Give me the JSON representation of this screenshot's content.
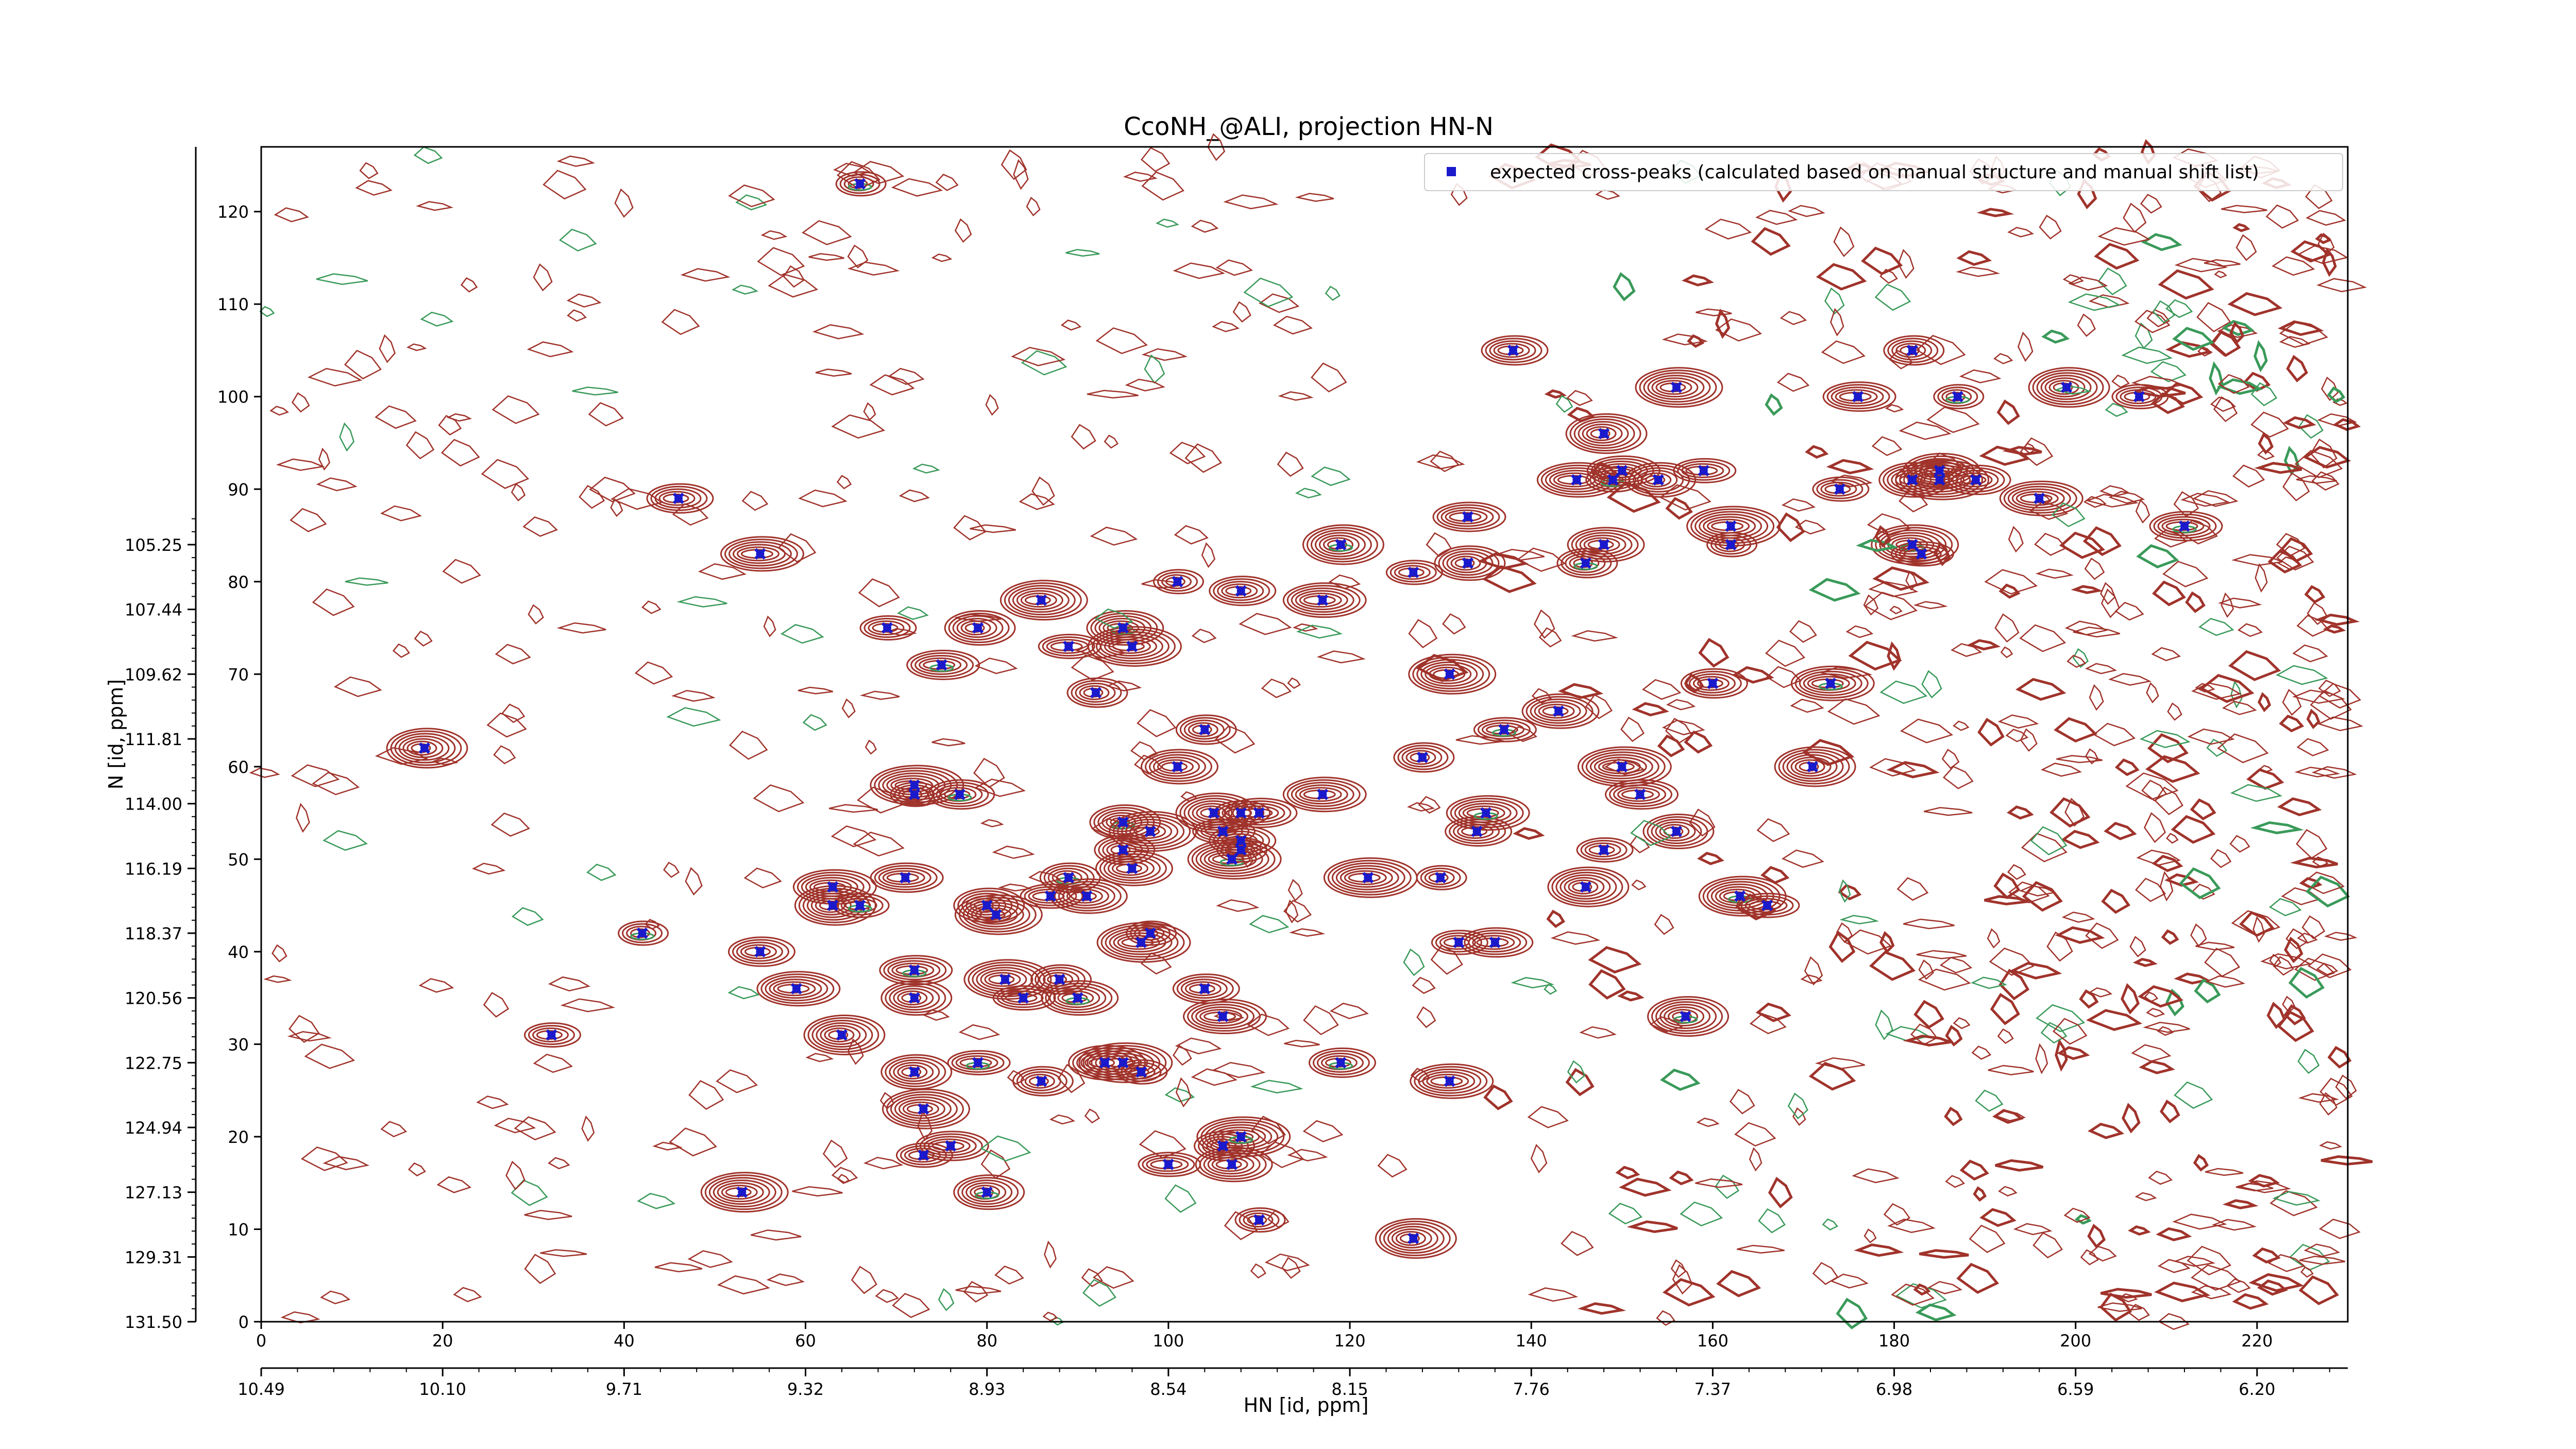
{
  "chart_data": {
    "type": "scatter",
    "title": "CcoNH_@ALI, projection HN-N",
    "xlabel": "HN [id, ppm]",
    "ylabel": "N [id, ppm]",
    "xlim": [
      0,
      230
    ],
    "ylim": [
      0,
      127
    ],
    "x_index_ticks": [
      "0",
      "20",
      "40",
      "60",
      "80",
      "100",
      "120",
      "140",
      "160",
      "180",
      "200",
      "220"
    ],
    "y_index_ticks": [
      "0",
      "10",
      "20",
      "30",
      "40",
      "50",
      "60",
      "70",
      "80",
      "90",
      "100",
      "110",
      "120"
    ],
    "x_ppm_ticks": [
      "10.49",
      "10.10",
      "9.71",
      "9.32",
      "8.93",
      "8.54",
      "8.15",
      "7.76",
      "7.37",
      "6.98",
      "6.59",
      "6.20"
    ],
    "y_ppm_ticks": [
      "131.50",
      "129.31",
      "127.13",
      "124.94",
      "122.75",
      "120.56",
      "118.37",
      "116.19",
      "114.00",
      "111.81",
      "109.62",
      "107.44",
      "105.25"
    ],
    "legend": {
      "placement": "top-right",
      "label": "expected cross-peaks (calculated based on manual structure and manual shift list)"
    },
    "colors": {
      "contour_positive": "#a0332b",
      "contour_negative": "#3a9a5a",
      "marker": "#1a1acc"
    },
    "series": [
      {
        "name": "expected cross-peaks (calculated based on manual structure and manual shift list)",
        "points": [
          [
            66,
            123
          ],
          [
            46,
            89
          ],
          [
            55,
            83
          ],
          [
            18,
            62
          ],
          [
            69,
            75
          ],
          [
            75,
            71
          ],
          [
            79,
            75
          ],
          [
            86,
            78
          ],
          [
            89,
            73
          ],
          [
            92,
            68
          ],
          [
            95,
            75
          ],
          [
            96,
            73
          ],
          [
            101,
            80
          ],
          [
            108,
            79
          ],
          [
            117,
            78
          ],
          [
            119,
            84
          ],
          [
            127,
            81
          ],
          [
            133,
            87
          ],
          [
            133,
            82
          ],
          [
            131,
            70
          ],
          [
            137,
            64
          ],
          [
            104,
            64
          ],
          [
            101,
            60
          ],
          [
            72,
            58
          ],
          [
            72,
            57
          ],
          [
            77,
            57
          ],
          [
            117,
            57
          ],
          [
            105,
            55
          ],
          [
            108,
            55
          ],
          [
            110,
            55
          ],
          [
            95,
            54
          ],
          [
            98,
            53
          ],
          [
            106,
            53
          ],
          [
            95,
            51
          ],
          [
            96,
            49
          ],
          [
            107,
            50
          ],
          [
            108,
            51
          ],
          [
            108,
            52
          ],
          [
            63,
            47
          ],
          [
            63,
            45
          ],
          [
            66,
            45
          ],
          [
            71,
            48
          ],
          [
            80,
            45
          ],
          [
            81,
            44
          ],
          [
            87,
            46
          ],
          [
            89,
            48
          ],
          [
            91,
            46
          ],
          [
            122,
            48
          ],
          [
            130,
            48
          ],
          [
            134,
            53
          ],
          [
            135,
            55
          ],
          [
            146,
            47
          ],
          [
            148,
            51
          ],
          [
            152,
            57
          ],
          [
            156,
            53
          ],
          [
            163,
            46
          ],
          [
            166,
            45
          ],
          [
            128,
            61
          ],
          [
            143,
            66
          ],
          [
            150,
            60
          ],
          [
            42,
            42
          ],
          [
            55,
            40
          ],
          [
            59,
            36
          ],
          [
            64,
            31
          ],
          [
            32,
            31
          ],
          [
            72,
            38
          ],
          [
            72,
            35
          ],
          [
            82,
            37
          ],
          [
            84,
            35
          ],
          [
            88,
            37
          ],
          [
            90,
            35
          ],
          [
            97,
            41
          ],
          [
            98,
            42
          ],
          [
            104,
            36
          ],
          [
            106,
            33
          ],
          [
            157,
            33
          ],
          [
            132,
            41
          ],
          [
            136,
            41
          ],
          [
            72,
            27
          ],
          [
            73,
            23
          ],
          [
            79,
            28
          ],
          [
            86,
            26
          ],
          [
            93,
            28
          ],
          [
            95,
            28
          ],
          [
            97,
            27
          ],
          [
            119,
            28
          ],
          [
            131,
            26
          ],
          [
            127,
            9
          ],
          [
            73,
            18
          ],
          [
            76,
            19
          ],
          [
            80,
            14
          ],
          [
            53,
            14
          ],
          [
            100,
            17
          ],
          [
            106,
            19
          ],
          [
            107,
            17
          ],
          [
            108,
            20
          ],
          [
            110,
            11
          ],
          [
            138,
            105
          ],
          [
            145,
            91
          ],
          [
            148,
            96
          ],
          [
            149,
            91
          ],
          [
            150,
            92
          ],
          [
            154,
            91
          ],
          [
            156,
            101
          ],
          [
            159,
            92
          ],
          [
            146,
            82
          ],
          [
            148,
            84
          ],
          [
            162,
            86
          ],
          [
            162,
            84
          ],
          [
            160,
            69
          ],
          [
            173,
            69
          ],
          [
            171,
            60
          ],
          [
            174,
            90
          ],
          [
            176,
            100
          ],
          [
            182,
            91
          ],
          [
            182,
            84
          ],
          [
            183,
            83
          ],
          [
            182,
            105
          ],
          [
            185,
            92
          ],
          [
            185,
            91
          ],
          [
            187,
            100
          ],
          [
            189,
            91
          ],
          [
            196,
            89
          ],
          [
            199,
            101
          ],
          [
            207,
            100
          ],
          [
            212,
            86
          ]
        ]
      }
    ]
  }
}
